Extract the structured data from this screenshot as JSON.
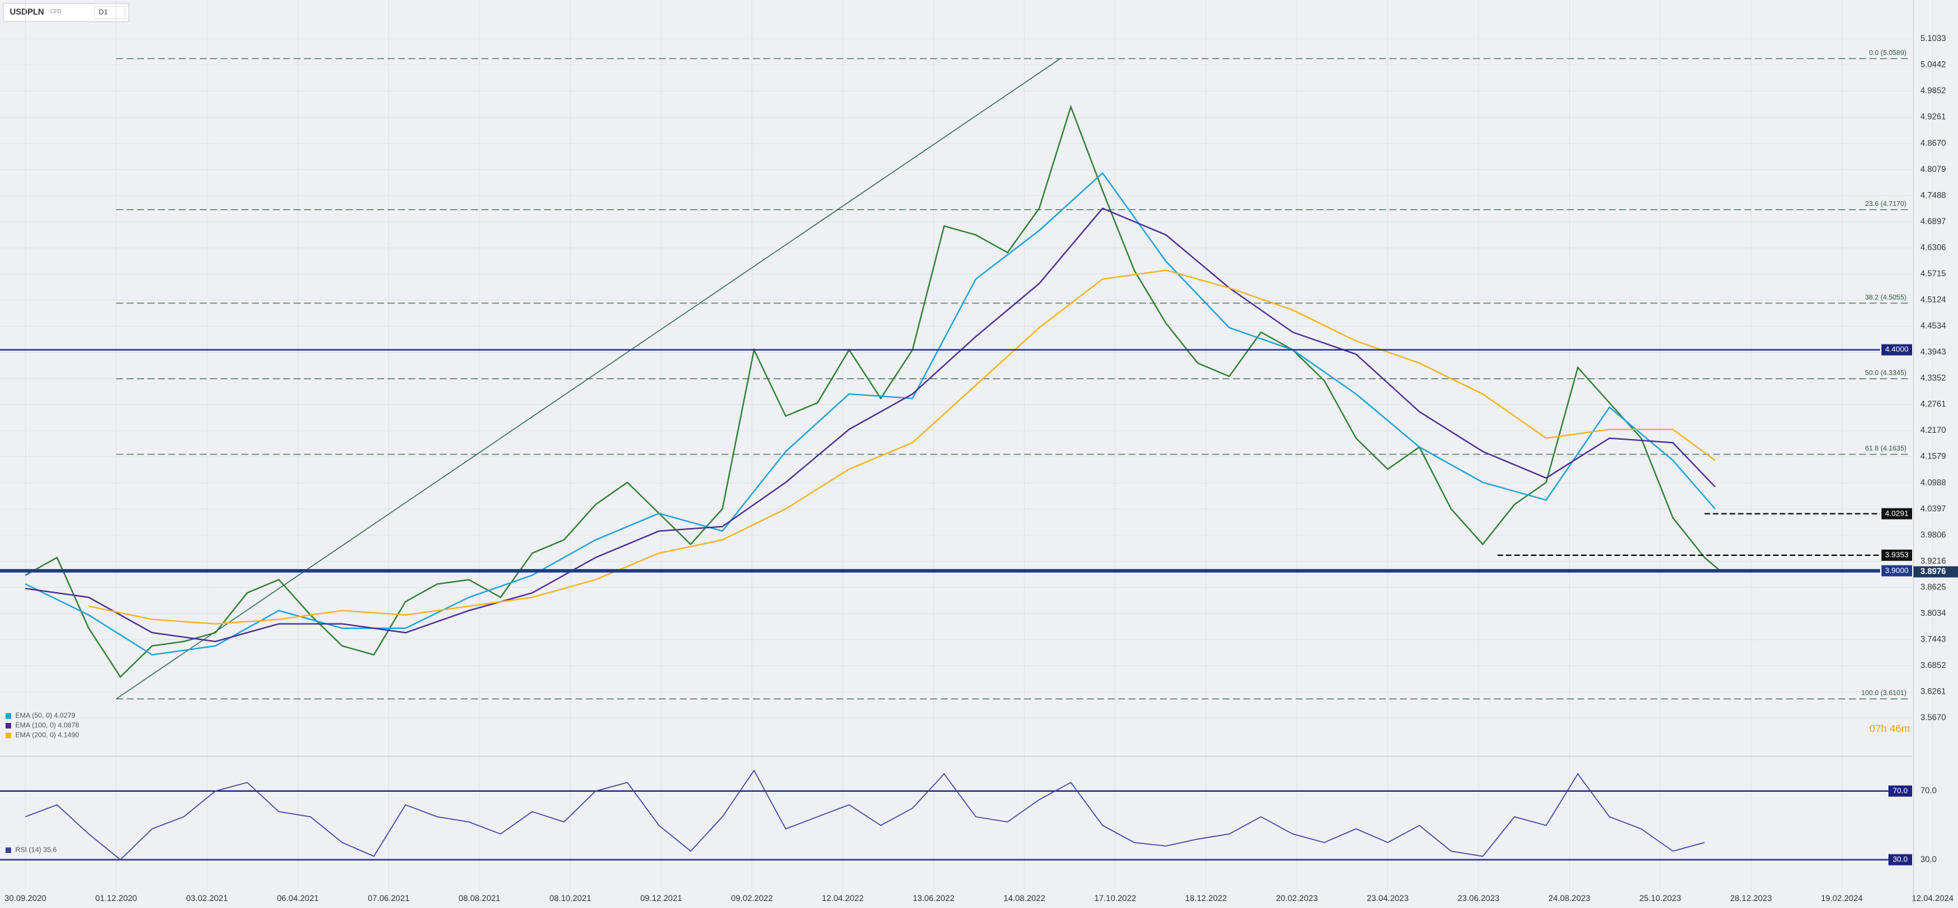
{
  "chart_data": [
    {
      "type": "line",
      "symbol": "USDPLN",
      "market": "CFD",
      "timeframe": "D1",
      "countdown": "07h 46m",
      "xlim": [
        -12,
        915
      ],
      "ylim": [
        3.507,
        5.16
      ],
      "xticks": [
        {
          "value": 0,
          "label": "30.09.2020"
        },
        {
          "value": 43,
          "label": "01.12.2020"
        },
        {
          "value": 86,
          "label": "03.02.2021"
        },
        {
          "value": 129,
          "label": "06.04.2021"
        },
        {
          "value": 172,
          "label": "07.06.2021"
        },
        {
          "value": 215,
          "label": "08.08.2021"
        },
        {
          "value": 258,
          "label": "08.10.2021"
        },
        {
          "value": 301,
          "label": "09.12.2021"
        },
        {
          "value": 344,
          "label": "09.02.2022"
        },
        {
          "value": 387,
          "label": "12.04.2022"
        },
        {
          "value": 430,
          "label": "13.06.2022"
        },
        {
          "value": 473,
          "label": "14.08.2022"
        },
        {
          "value": 516,
          "label": "17.10.2022"
        },
        {
          "value": 559,
          "label": "18.12.2022"
        },
        {
          "value": 602,
          "label": "20.02.2023"
        },
        {
          "value": 645,
          "label": "23.04.2023"
        },
        {
          "value": 688,
          "label": "23.06.2023"
        },
        {
          "value": 731,
          "label": "24.08.2023"
        },
        {
          "value": 774,
          "label": "25.10.2023"
        },
        {
          "value": 817,
          "label": "28.12.2023"
        },
        {
          "value": 860,
          "label": "19.02.2024"
        },
        {
          "value": 903,
          "label": "12.04.2024"
        }
      ],
      "yticks": [
        5.1033,
        5.0442,
        4.9852,
        4.9261,
        {
          "value": 4.867,
          "label": "4.8670"
        },
        4.8079,
        4.7488,
        4.6897,
        4.6306,
        4.5715,
        4.5124,
        4.4534,
        4.3943,
        4.3352,
        4.2761,
        {
          "value": 4.217,
          "label": "4.2170"
        },
        4.1579,
        4.0988,
        4.0397,
        3.9806,
        3.9216,
        3.8625,
        3.8034,
        3.7443,
        3.6852,
        3.6261,
        {
          "value": 3.567,
          "label": "3.5670"
        }
      ],
      "grid": true,
      "series": [
        {
          "color": "#2e7d32",
          "x": [
            0,
            15,
            30,
            45,
            60,
            75,
            90,
            105,
            120,
            135,
            150,
            165,
            180,
            195,
            210,
            225,
            240,
            255,
            270,
            285,
            300,
            315,
            330,
            345,
            360,
            375,
            390,
            405,
            420,
            435,
            450,
            465,
            480,
            495,
            510,
            525,
            540,
            555,
            570,
            585,
            600,
            615,
            630,
            645,
            660,
            675,
            690,
            705,
            720,
            735,
            750,
            765,
            780,
            795,
            803
          ],
          "values": [
            3.89,
            3.93,
            3.77,
            3.66,
            3.73,
            3.74,
            3.76,
            3.85,
            3.88,
            3.8,
            3.73,
            3.71,
            3.83,
            3.87,
            3.88,
            3.84,
            3.94,
            3.97,
            4.05,
            4.1,
            4.03,
            3.96,
            4.04,
            4.4,
            4.25,
            4.28,
            4.4,
            4.29,
            4.4,
            4.68,
            4.66,
            4.62,
            4.72,
            4.95,
            4.76,
            4.58,
            4.46,
            4.37,
            4.34,
            4.44,
            4.4,
            4.33,
            4.2,
            4.13,
            4.18,
            4.04,
            3.96,
            4.05,
            4.1,
            4.36,
            4.28,
            4.2,
            4.02,
            3.93,
            3.8976
          ]
        },
        {
          "name": "EMA (50, 0) 4.0279",
          "color": "#1ba1d9",
          "x": [
            0,
            30,
            60,
            90,
            120,
            150,
            180,
            210,
            240,
            270,
            300,
            330,
            360,
            390,
            420,
            450,
            480,
            510,
            540,
            570,
            600,
            630,
            660,
            690,
            720,
            750,
            780,
            800
          ],
          "values": [
            3.87,
            3.8,
            3.71,
            3.73,
            3.81,
            3.77,
            3.77,
            3.84,
            3.89,
            3.97,
            4.03,
            3.99,
            4.17,
            4.3,
            4.29,
            4.56,
            4.67,
            4.8,
            4.6,
            4.45,
            4.4,
            4.3,
            4.18,
            4.1,
            4.06,
            4.27,
            4.15,
            4.04
          ]
        },
        {
          "name": "EMA (100, 0) 4.0878",
          "color": "#4a2c8f",
          "x": [
            0,
            30,
            60,
            90,
            120,
            150,
            180,
            210,
            240,
            270,
            300,
            330,
            360,
            390,
            420,
            450,
            480,
            510,
            540,
            570,
            600,
            630,
            660,
            690,
            720,
            750,
            780,
            800
          ],
          "values": [
            3.86,
            3.84,
            3.76,
            3.74,
            3.78,
            3.78,
            3.76,
            3.81,
            3.85,
            3.93,
            3.99,
            4.0,
            4.1,
            4.22,
            4.3,
            4.43,
            4.55,
            4.72,
            4.66,
            4.54,
            4.44,
            4.39,
            4.26,
            4.17,
            4.11,
            4.2,
            4.19,
            4.09
          ]
        },
        {
          "name": "EMA (200, 0) 4.1490",
          "color": "#f5b324",
          "x": [
            0,
            30,
            60,
            90,
            120,
            150,
            180,
            210,
            240,
            270,
            300,
            330,
            360,
            390,
            420,
            450,
            480,
            510,
            540,
            570,
            600,
            630,
            660,
            690,
            720,
            750,
            780,
            800
          ],
          "values": [
            null,
            3.82,
            3.79,
            3.78,
            3.79,
            3.81,
            3.8,
            3.82,
            3.84,
            3.88,
            3.94,
            3.97,
            4.04,
            4.13,
            4.19,
            4.32,
            4.45,
            4.56,
            4.58,
            4.54,
            4.49,
            4.42,
            4.37,
            4.3,
            4.2,
            4.22,
            4.22,
            4.15
          ]
        }
      ],
      "trendline": {
        "color": "#2f6b4a",
        "x": [
          43,
          490
        ],
        "values": [
          3.6101,
          5.0589
        ]
      },
      "fib_levels": [
        {
          "value": 5.0589,
          "label": "0.0 (5.0589)"
        },
        {
          "value": 4.717,
          "label": "23.6 (4.7170)"
        },
        {
          "value": 4.5055,
          "label": "38.2 (4.5055)"
        },
        {
          "value": 4.3345,
          "label": "50.0 (4.3345)"
        },
        {
          "value": 4.1635,
          "label": "61.8 (4.1635)"
        },
        {
          "value": 3.6101,
          "label": "100.0 (3.6101)"
        }
      ],
      "fib_color": "#2d5a3d",
      "levels": [
        {
          "value": 4.4,
          "label": "4.4000",
          "color": "#1a237e",
          "style": "solid"
        },
        {
          "value": 3.9,
          "label": "3.9000",
          "color": "#1e3a8a",
          "style": "thick"
        },
        {
          "value": 4.0291,
          "label": "4.0291",
          "color": "#111111",
          "style": "dashed",
          "start": 795
        },
        {
          "value": 3.9353,
          "label": "3.9353",
          "color": "#111111",
          "style": "dashed",
          "start": 697
        },
        {
          "value": 3.8976,
          "color": "#1e3a5f",
          "style": "tag"
        }
      ]
    },
    {
      "type": "line",
      "xlim": [
        -12,
        915
      ],
      "ylim": [
        12,
        87
      ],
      "yticks": [
        {
          "value": 70,
          "label": "70.0"
        },
        {
          "value": 30,
          "label": "30.0"
        }
      ],
      "series": [
        {
          "name": "RSI (14) 35.6",
          "color": "#3b3fa0",
          "x": [
            0,
            15,
            30,
            45,
            60,
            75,
            90,
            105,
            120,
            135,
            150,
            165,
            180,
            195,
            210,
            225,
            240,
            255,
            270,
            285,
            300,
            315,
            330,
            345,
            360,
            375,
            390,
            405,
            420,
            435,
            450,
            465,
            480,
            495,
            510,
            525,
            540,
            555,
            570,
            585,
            600,
            615,
            630,
            645,
            660,
            675,
            690,
            705,
            720,
            735,
            750,
            765,
            780,
            795
          ],
          "values": [
            55,
            62,
            45,
            30,
            48,
            55,
            70,
            75,
            58,
            55,
            40,
            32,
            62,
            55,
            52,
            45,
            58,
            52,
            70,
            75,
            50,
            35,
            55,
            82,
            48,
            55,
            62,
            50,
            60,
            80,
            55,
            52,
            65,
            75,
            50,
            40,
            38,
            42,
            45,
            55,
            45,
            40,
            48,
            40,
            50,
            35,
            32,
            55,
            50,
            80,
            55,
            48,
            35,
            40
          ]
        }
      ]
    }
  ]
}
